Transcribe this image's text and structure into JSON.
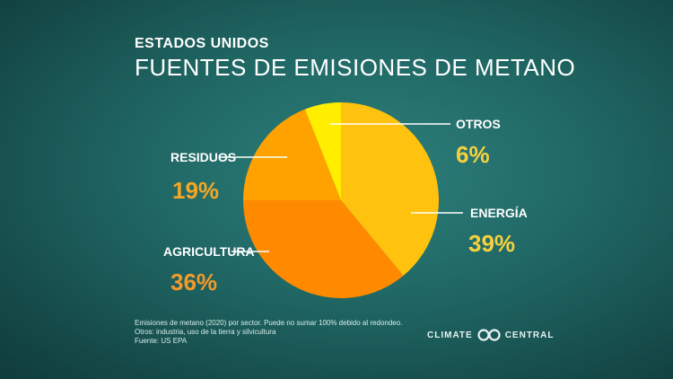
{
  "header": {
    "subtitle": "ESTADOS UNIDOS",
    "title": "FUENTES DE EMISIONES DE METANO"
  },
  "chart_data": {
    "type": "pie",
    "categories": [
      "ENERGÍA",
      "AGRICULTURA",
      "RESIDUOS",
      "OTROS"
    ],
    "values": [
      39,
      36,
      19,
      6
    ],
    "value_labels": [
      "39%",
      "36%",
      "19%",
      "6%"
    ],
    "colors": [
      "#ffc20e",
      "#ff8a00",
      "#ffa200",
      "#ffee00"
    ],
    "label_value_colors": [
      "#f7d13d",
      "#f59a2a",
      "#f5a623",
      "#f7d13d"
    ]
  },
  "footnotes": [
    "Emisiones de metano (2020) por sector. Puede no sumar 100% debido al redondeo.",
    "Otros: industria, uso de la tierra y silvicultura",
    "Fuente: US EPA"
  ],
  "brand": {
    "left": "CLIMATE",
    "right": "CENTRAL",
    "icon": "climate-central-logo-icon"
  }
}
